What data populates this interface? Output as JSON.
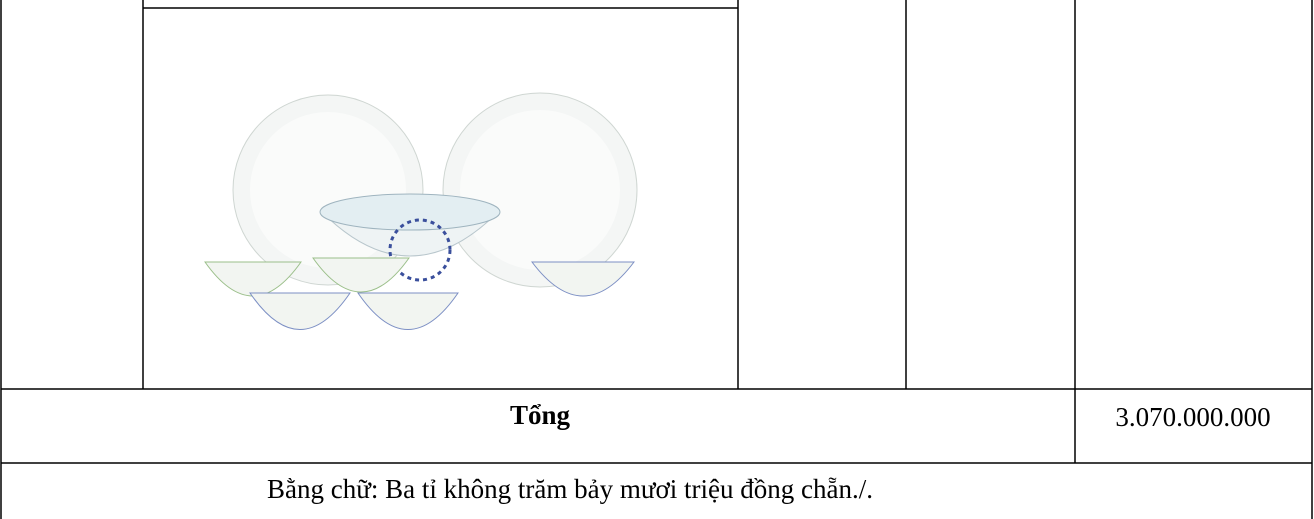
{
  "table": {
    "rows": [
      [
        "Tổng",
        "3.070.000.000"
      ],
      [
        "Bằng chữ: Ba tỉ không trăm bảy mươi triệu đồng chẵn./."
      ]
    ]
  }
}
